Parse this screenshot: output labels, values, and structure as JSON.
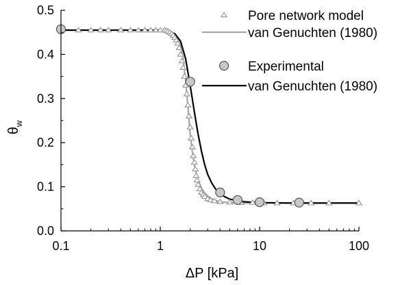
{
  "chart_data": {
    "type": "scatter",
    "x_scale": "log",
    "xlim": [
      0.1,
      100
    ],
    "ylim": [
      0.0,
      0.5
    ],
    "xlabel": "ΔP [kPa]",
    "ylabel": "θ",
    "ylabel_sub": "w",
    "xticks": [
      0.1,
      1,
      10,
      100
    ],
    "xtick_labels": [
      "0.1",
      "1",
      "10",
      "100"
    ],
    "yticks": [
      0.0,
      0.1,
      0.2,
      0.3,
      0.4,
      0.5
    ],
    "ytick_labels": [
      "0.0",
      "0.1",
      "0.2",
      "0.3",
      "0.4",
      "0.5"
    ],
    "grid": false,
    "legend_position": "top-right",
    "series": [
      {
        "name": "Pore network model",
        "kind": "markers",
        "marker": "triangle-open",
        "color": "#9a9a9a",
        "x": [
          0.15,
          0.2,
          0.25,
          0.3,
          0.4,
          0.5,
          0.6,
          0.7,
          0.8,
          0.9,
          1.0,
          1.1,
          1.15,
          1.2,
          1.25,
          1.3,
          1.35,
          1.4,
          1.45,
          1.5,
          1.55,
          1.6,
          1.65,
          1.7,
          1.75,
          1.8,
          1.85,
          1.9,
          1.95,
          2.0,
          2.05,
          2.1,
          2.15,
          2.2,
          2.25,
          2.3,
          2.35,
          2.4,
          2.5,
          2.6,
          2.7,
          2.8,
          3.0,
          3.2,
          3.5,
          4.0,
          5.0,
          6.5,
          8.5,
          11,
          15,
          22,
          33,
          50,
          100
        ],
        "y": [
          0.455,
          0.455,
          0.455,
          0.455,
          0.455,
          0.455,
          0.455,
          0.455,
          0.455,
          0.455,
          0.455,
          0.455,
          0.454,
          0.452,
          0.45,
          0.447,
          0.443,
          0.438,
          0.432,
          0.425,
          0.415,
          0.4,
          0.385,
          0.37,
          0.35,
          0.33,
          0.31,
          0.285,
          0.26,
          0.235,
          0.21,
          0.19,
          0.17,
          0.155,
          0.14,
          0.125,
          0.115,
          0.105,
          0.095,
          0.087,
          0.082,
          0.078,
          0.073,
          0.07,
          0.068,
          0.066,
          0.065,
          0.064,
          0.064,
          0.063,
          0.063,
          0.063,
          0.063,
          0.063,
          0.063
        ]
      },
      {
        "name": "van Genuchten (1980)",
        "kind": "line",
        "color": "#a6a6a6",
        "x": [
          0.1,
          0.5,
          1.0,
          1.2,
          1.4,
          1.6,
          1.7,
          1.8,
          1.9,
          2.0,
          2.1,
          2.2,
          2.3,
          2.4,
          2.6,
          2.8,
          3.0,
          3.3,
          3.6,
          4.0,
          5.0,
          7.0,
          10,
          20,
          50,
          100
        ],
        "y": [
          0.455,
          0.455,
          0.455,
          0.453,
          0.445,
          0.42,
          0.39,
          0.34,
          0.28,
          0.22,
          0.18,
          0.15,
          0.13,
          0.115,
          0.097,
          0.086,
          0.079,
          0.073,
          0.069,
          0.066,
          0.064,
          0.063,
          0.063,
          0.063,
          0.063,
          0.063
        ]
      },
      {
        "name": "Experimental",
        "kind": "markers",
        "marker": "circle-filled",
        "color": "#c8c8c8",
        "x": [
          0.1,
          2.0,
          4.0,
          6.0,
          10.0,
          25.0
        ],
        "y": [
          0.457,
          0.338,
          0.087,
          0.07,
          0.065,
          0.064
        ]
      },
      {
        "name": "van Genuchten (1980)",
        "kind": "line",
        "color": "#000000",
        "x": [
          0.1,
          0.5,
          1.0,
          1.2,
          1.4,
          1.6,
          1.8,
          2.0,
          2.2,
          2.4,
          2.6,
          2.8,
          3.0,
          3.3,
          3.6,
          4.0,
          4.5,
          5.0,
          6.0,
          7.0,
          10,
          20,
          50,
          100
        ],
        "y": [
          0.455,
          0.455,
          0.455,
          0.453,
          0.447,
          0.43,
          0.39,
          0.33,
          0.27,
          0.22,
          0.18,
          0.15,
          0.128,
          0.108,
          0.095,
          0.083,
          0.077,
          0.072,
          0.068,
          0.066,
          0.064,
          0.063,
          0.063,
          0.063
        ]
      }
    ]
  }
}
